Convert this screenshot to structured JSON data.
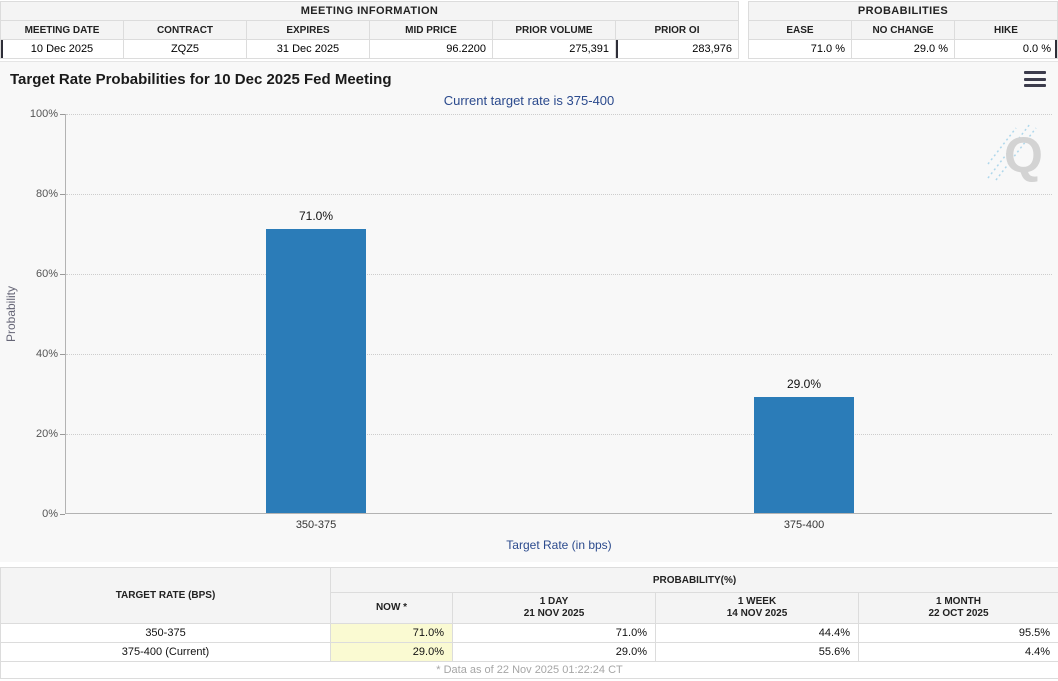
{
  "meeting_info": {
    "title": "MEETING INFORMATION",
    "columns": [
      "MEETING DATE",
      "CONTRACT",
      "EXPIRES",
      "MID PRICE",
      "PRIOR VOLUME",
      "PRIOR OI"
    ],
    "values": [
      "10 Dec 2025",
      "ZQZ5",
      "31 Dec 2025",
      "96.2200",
      "275,391",
      "283,976"
    ]
  },
  "probabilities_panel": {
    "title": "PROBABILITIES",
    "columns": [
      "EASE",
      "NO CHANGE",
      "HIKE"
    ],
    "values": [
      "71.0 %",
      "29.0 %",
      "0.0 %"
    ]
  },
  "chart_data": {
    "type": "bar",
    "title": "Target Rate Probabilities for 10 Dec 2025 Fed Meeting",
    "subtitle": "Current target rate is 375-400",
    "categories": [
      "350-375",
      "375-400"
    ],
    "values": [
      71.0,
      29.0
    ],
    "value_labels": [
      "71.0%",
      "29.0%"
    ],
    "xlabel": "Target Rate (in bps)",
    "ylabel": "Probability",
    "ylim": [
      0,
      100
    ],
    "yticks": [
      "0%",
      "20%",
      "40%",
      "60%",
      "80%",
      "100%"
    ],
    "grid": "horizontal-dotted",
    "legend": "none",
    "bar_color": "#2b7cb8"
  },
  "watermark_letter": "Q",
  "history_table": {
    "col1_header": "TARGET RATE (BPS)",
    "group_header": "PROBABILITY(%)",
    "sub_headers": [
      {
        "line1": "NOW *",
        "line2": ""
      },
      {
        "line1": "1 DAY",
        "line2": "21 NOV 2025"
      },
      {
        "line1": "1 WEEK",
        "line2": "14 NOV 2025"
      },
      {
        "line1": "1 MONTH",
        "line2": "22 OCT 2025"
      }
    ],
    "rows": [
      {
        "rate": "350-375",
        "now": "71.0%",
        "day": "71.0%",
        "week": "44.4%",
        "month": "95.5%"
      },
      {
        "rate": "375-400 (Current)",
        "now": "29.0%",
        "day": "29.0%",
        "week": "55.6%",
        "month": "4.4%"
      }
    ],
    "footnote": "* Data as of 22 Nov 2025 01:22:24 CT"
  },
  "colors": {
    "bar": "#2b7cb8",
    "accent_navy": "#2b4a8d",
    "now_highlight": "#fafad2",
    "header_bg": "#f4f4f4"
  }
}
